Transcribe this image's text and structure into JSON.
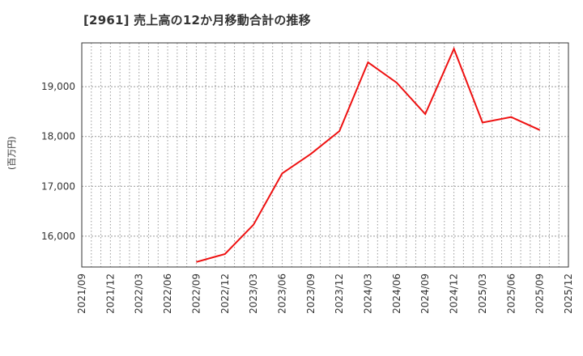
{
  "title": "[2961]  売上高の12か月移動合計の推移",
  "y_axis_label": "(百万円)",
  "colors": {
    "line": "#ee1111",
    "grid": "#999999",
    "frame": "#333333",
    "text": "#333333"
  },
  "chart_data": {
    "type": "line",
    "title": "[2961]  売上高の12か月移動合計の推移",
    "xlabel": "",
    "ylabel": "(百万円)",
    "x_ticks": [
      "2021/09",
      "2021/12",
      "2022/03",
      "2022/06",
      "2022/09",
      "2022/12",
      "2023/03",
      "2023/06",
      "2023/09",
      "2023/12",
      "2024/03",
      "2024/06",
      "2024/09",
      "2024/12",
      "2025/03",
      "2025/06",
      "2025/09",
      "2025/12"
    ],
    "y_ticks": [
      16000,
      17000,
      18000,
      19000
    ],
    "y_tick_labels": [
      "16,000",
      "17,000",
      "18,000",
      "19,000"
    ],
    "ylim": [
      15380,
      19880
    ],
    "grid": true,
    "legend": null,
    "series": [
      {
        "name": "売上高の12か月移動合計",
        "x": [
          "2022/09",
          "2022/12",
          "2023/03",
          "2023/06",
          "2023/09",
          "2023/12",
          "2024/03",
          "2024/06",
          "2024/09",
          "2024/12",
          "2025/03",
          "2025/06",
          "2025/09"
        ],
        "values": [
          15480,
          15640,
          16230,
          17260,
          17650,
          18110,
          19490,
          19080,
          18450,
          19760,
          18280,
          18390,
          18130
        ]
      }
    ]
  }
}
